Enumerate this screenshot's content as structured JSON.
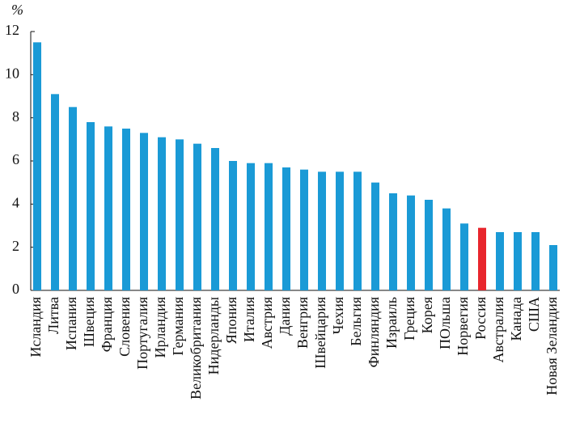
{
  "chart_data": {
    "type": "bar",
    "ylabel": "%",
    "categories": [
      "Исландия",
      "Литва",
      "Испания",
      "Швеция",
      "Франция",
      "Словения",
      "Португалия",
      "Ирландия",
      "Германия",
      "Великобритания",
      "Нидерланды",
      "Япония",
      "Италия",
      "Австрия",
      "Дания",
      "Венгрия",
      "Швейцария",
      "Чехия",
      "Бельгия",
      "Финляндия",
      "Израиль",
      "Греция",
      "Корея",
      "ПОльша",
      "Норвегия",
      "Россия",
      "Австралия",
      "Канада",
      "США",
      "Новая Зеландия"
    ],
    "values": [
      11.5,
      9.1,
      8.5,
      7.8,
      7.6,
      7.5,
      7.3,
      7.1,
      7.0,
      6.8,
      6.6,
      6.0,
      5.9,
      5.9,
      5.7,
      5.6,
      5.5,
      5.5,
      5.5,
      5.0,
      4.5,
      4.4,
      4.2,
      3.8,
      3.1,
      2.9,
      2.7,
      2.7,
      2.7,
      2.1
    ],
    "colors": [
      "#1a9ad6",
      "#1a9ad6",
      "#1a9ad6",
      "#1a9ad6",
      "#1a9ad6",
      "#1a9ad6",
      "#1a9ad6",
      "#1a9ad6",
      "#1a9ad6",
      "#1a9ad6",
      "#1a9ad6",
      "#1a9ad6",
      "#1a9ad6",
      "#1a9ad6",
      "#1a9ad6",
      "#1a9ad6",
      "#1a9ad6",
      "#1a9ad6",
      "#1a9ad6",
      "#1a9ad6",
      "#1a9ad6",
      "#1a9ad6",
      "#1a9ad6",
      "#1a9ad6",
      "#1a9ad6",
      "#e8262d",
      "#1a9ad6",
      "#1a9ad6",
      "#1a9ad6",
      "#1a9ad6"
    ],
    "ylim": [
      0,
      12
    ],
    "yticks": [
      0,
      2,
      4,
      6,
      8,
      10,
      12
    ],
    "grid": false
  }
}
